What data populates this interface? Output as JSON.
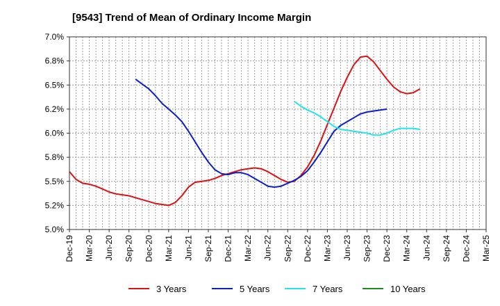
{
  "chart_data": {
    "type": "line",
    "title": "[9543]  Trend of Mean of Ordinary Income Margin",
    "xlabel": "",
    "ylabel": "",
    "x_tick_labels": [
      "Dec-19",
      "Mar-20",
      "Jun-20",
      "Sep-20",
      "Dec-20",
      "Mar-21",
      "Jun-21",
      "Sep-21",
      "Dec-21",
      "Mar-22",
      "Jun-22",
      "Sep-22",
      "Dec-22",
      "Mar-23",
      "Jun-23",
      "Sep-23",
      "Dec-23",
      "Mar-24",
      "Jun-24",
      "Sep-24",
      "Dec-24",
      "Mar-25"
    ],
    "y_tick_labels": [
      "5.0%",
      "5.2%",
      "5.5%",
      "5.8%",
      "6.0%",
      "6.2%",
      "6.5%",
      "6.8%",
      "7.0%"
    ],
    "ylim": [
      5.0,
      7.0
    ],
    "grid": true,
    "legend_position": "bottom",
    "series": [
      {
        "name": "3 Years",
        "color": "#dd1111",
        "start_index": 0,
        "values": [
          5.6,
          5.52,
          5.48,
          5.47,
          5.45,
          5.42,
          5.39,
          5.37,
          5.36,
          5.35,
          5.33,
          5.31,
          5.29,
          5.27,
          5.26,
          5.25,
          5.28,
          5.35,
          5.44,
          5.49,
          5.5,
          5.51,
          5.53,
          5.56,
          5.58,
          5.6,
          5.62,
          5.63,
          5.64,
          5.63,
          5.6,
          5.56,
          5.52,
          5.49,
          5.5,
          5.56,
          5.65,
          5.77,
          5.92,
          6.09,
          6.26,
          6.43,
          6.58,
          6.71,
          6.79,
          6.8,
          6.74,
          6.65,
          6.56,
          6.48,
          6.43,
          6.41,
          6.42,
          6.46
        ]
      },
      {
        "name": "5 Years",
        "color": "#0a1fc8",
        "start_index": 10,
        "values": [
          6.56,
          6.51,
          6.46,
          6.39,
          6.31,
          6.25,
          6.19,
          6.12,
          6.02,
          5.91,
          5.8,
          5.7,
          5.62,
          5.58,
          5.57,
          5.59,
          5.59,
          5.57,
          5.53,
          5.49,
          5.45,
          5.44,
          5.45,
          5.48,
          5.51,
          5.55,
          5.61,
          5.7,
          5.8,
          5.91,
          6.02,
          6.08,
          6.12,
          6.16,
          6.2,
          6.22,
          6.23,
          6.24,
          6.25
        ]
      },
      {
        "name": "7 Years",
        "color": "#22e4ea",
        "start_index": 34,
        "values": [
          6.33,
          6.28,
          6.24,
          6.21,
          6.17,
          6.12,
          6.07,
          6.04,
          6.03,
          6.02,
          6.01,
          6.0,
          5.98,
          5.98,
          6.0,
          6.03,
          6.05,
          6.05,
          6.05,
          6.04
        ]
      },
      {
        "name": "10 Years",
        "color": "#1a8c1a",
        "start_index": 0,
        "values": []
      }
    ]
  }
}
